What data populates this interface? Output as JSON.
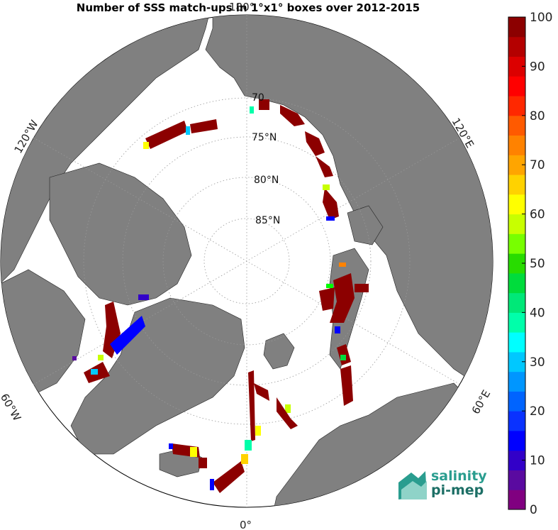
{
  "title": "Number of SSS match-ups in 1°x1° boxes over 2012-2015",
  "meridian_labels": {
    "top": "180°",
    "bottom": "0°",
    "upper_left": "120°W",
    "lower_left": "60°W",
    "upper_right": "120°E",
    "lower_right": "60°E"
  },
  "parallel_labels": [
    "70",
    "75°N",
    "80°N",
    "85°N"
  ],
  "colorbar": {
    "min": 0,
    "max": 100,
    "ticks": [
      "0",
      "10",
      "20",
      "30",
      "40",
      "50",
      "60",
      "70",
      "80",
      "90",
      "100"
    ],
    "colors": [
      "#800080",
      "#5a0aa0",
      "#3200c8",
      "#0000ff",
      "#0a32ff",
      "#0064ff",
      "#0096ff",
      "#00c8ff",
      "#00ffff",
      "#00ffaa",
      "#00e878",
      "#00dc3c",
      "#28dc00",
      "#78ff00",
      "#c8ff00",
      "#ffff00",
      "#ffd200",
      "#ffa500",
      "#ff8200",
      "#ff5a00",
      "#ff2800",
      "#ff0000",
      "#dc0000",
      "#b40000",
      "#8c0000"
    ]
  },
  "logo": {
    "line1": "salinity",
    "line2": "pi-mep"
  }
}
